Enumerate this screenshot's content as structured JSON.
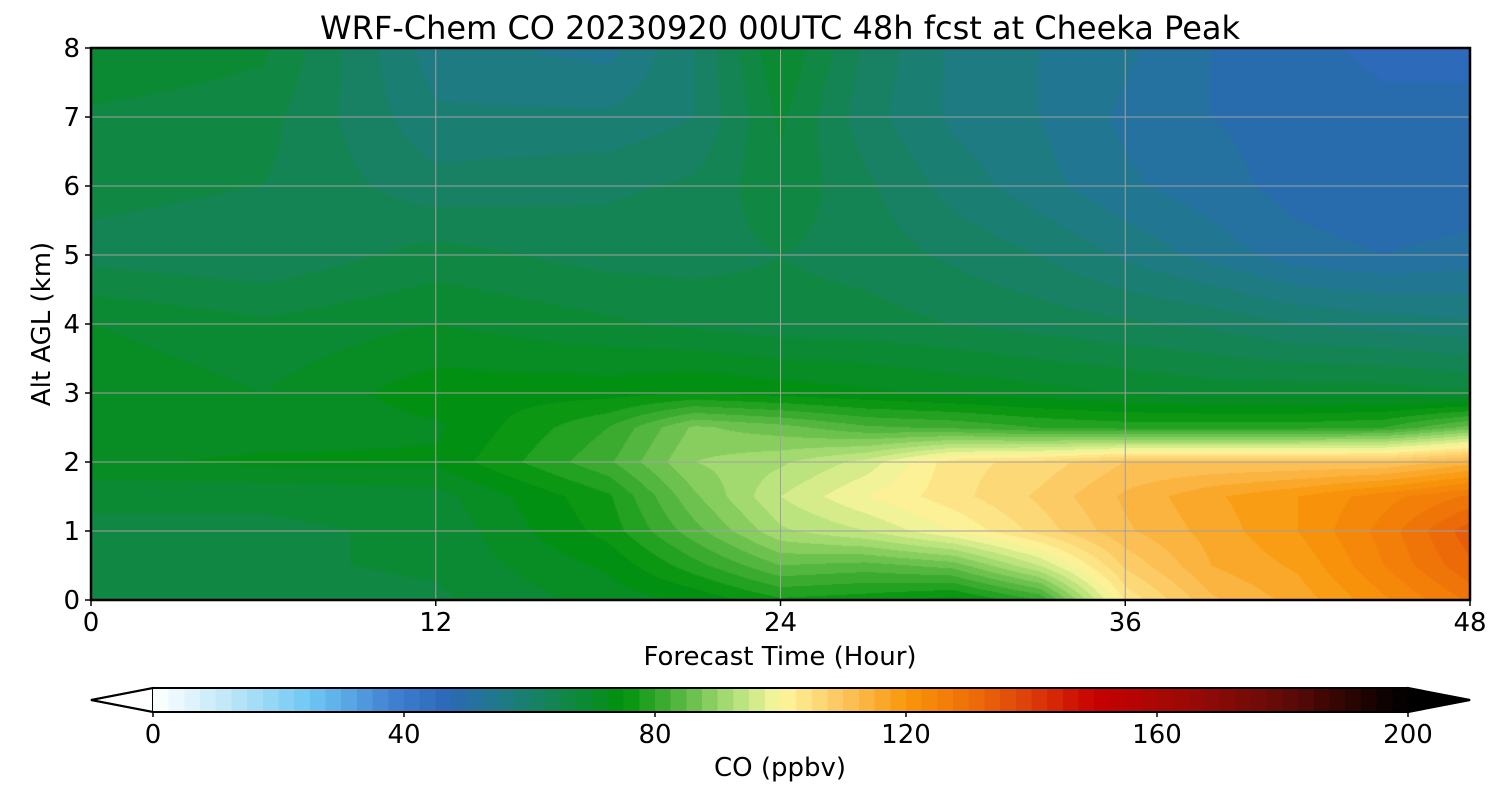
{
  "chart_data": {
    "type": "heatmap",
    "title": "WRF-Chem CO  20230920 00UTC 48h fcst at Cheeka Peak",
    "xlabel": "Forecast Time (Hour)",
    "ylabel": "Alt AGL (km)",
    "xlim": [
      0,
      48
    ],
    "ylim": [
      0,
      8
    ],
    "xticks": [
      0,
      12,
      24,
      36,
      48
    ],
    "yticks": [
      0,
      1,
      2,
      3,
      4,
      5,
      6,
      7,
      8
    ],
    "grid": true,
    "x": [
      0,
      6,
      12,
      18,
      21,
      24,
      27,
      30,
      33,
      36,
      39,
      42,
      45,
      48
    ],
    "y": [
      0,
      0.5,
      1,
      1.5,
      2,
      2.5,
      3,
      4,
      5,
      6,
      7,
      8
    ],
    "z": [
      [
        66,
        66,
        67,
        71,
        73,
        77,
        76,
        74,
        80,
        103,
        112,
        116,
        122,
        128
      ],
      [
        67,
        67,
        68,
        73,
        79,
        85,
        84,
        86,
        95,
        108,
        115,
        118,
        125,
        132
      ],
      [
        67,
        67,
        68,
        76,
        84,
        92,
        95,
        100,
        106,
        112,
        116,
        120,
        126,
        134
      ],
      [
        68,
        68,
        69,
        77,
        87,
        95,
        100,
        104,
        108,
        113,
        117,
        120,
        124,
        128
      ],
      [
        72,
        73,
        73,
        82,
        90,
        92,
        96,
        104,
        106,
        110,
        110,
        110,
        110,
        114
      ],
      [
        71,
        71,
        72,
        80,
        88,
        86,
        83,
        82,
        80,
        79,
        79,
        79,
        80,
        86
      ],
      [
        72,
        70,
        74,
        74,
        75,
        74,
        73,
        72,
        71,
        70,
        69,
        69,
        69,
        68
      ],
      [
        70,
        68,
        70,
        68,
        67,
        66,
        66,
        65,
        64,
        63,
        62,
        60,
        59,
        58
      ],
      [
        64,
        63,
        66,
        64,
        64,
        65,
        64,
        62,
        60,
        57,
        54,
        51,
        50,
        51
      ],
      [
        66,
        65,
        61,
        62,
        63,
        67,
        63,
        59,
        56,
        53,
        51,
        49,
        48,
        48
      ],
      [
        67,
        66,
        58,
        58,
        60,
        68,
        61,
        57,
        55,
        52,
        50,
        49,
        48,
        48
      ],
      [
        70,
        68,
        56,
        54,
        60,
        70,
        62,
        57,
        55,
        53,
        50,
        48,
        47,
        47
      ]
    ],
    "colorbar": {
      "label": "CO  (ppbv)",
      "min": 0,
      "max": 200,
      "ticks": [
        0,
        40,
        80,
        120,
        160,
        200
      ],
      "extend": "both",
      "colors": [
        [
          0,
          "#ffffff"
        ],
        [
          12,
          "#bfe7f7"
        ],
        [
          25,
          "#6ec8f4"
        ],
        [
          38,
          "#4181d1"
        ],
        [
          47,
          "#2b68b8"
        ],
        [
          55,
          "#1f7a8a"
        ],
        [
          65,
          "#13854c"
        ],
        [
          75,
          "#00920a"
        ],
        [
          83,
          "#4bb23a"
        ],
        [
          93,
          "#b4e27a"
        ],
        [
          100,
          "#fdf79f"
        ],
        [
          110,
          "#fcc55e"
        ],
        [
          120,
          "#f9970a"
        ],
        [
          130,
          "#ef7008"
        ],
        [
          140,
          "#dc3c0a"
        ],
        [
          150,
          "#c80000"
        ],
        [
          165,
          "#9a0a07"
        ],
        [
          180,
          "#620b07"
        ],
        [
          195,
          "#140202"
        ],
        [
          200,
          "#000000"
        ]
      ]
    }
  }
}
